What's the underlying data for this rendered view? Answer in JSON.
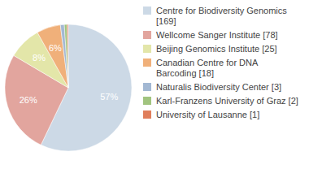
{
  "chart_data": {
    "type": "pie",
    "categories": [
      "Centre for Biodiversity Genomics [169]",
      "Wellcome Sanger Institute [78]",
      "Beijing Genomics Institute [25]",
      "Canadian Centre for DNA Barcoding [18]",
      "Naturalis Biodiversity Center [3]",
      "Karl-Franzens University of Graz [2]",
      "University of Lausanne [1]"
    ],
    "values": [
      57.1,
      26.4,
      8.4,
      6.1,
      1.0,
      0.7,
      0.3
    ],
    "value_labels": [
      "57%",
      "26%",
      "8%",
      "6%",
      null,
      null,
      null
    ],
    "colors": [
      "#ccd9e6",
      "#e2a59e",
      "#e3e6a9",
      "#f0b07a",
      "#a3b8d3",
      "#a1c47f",
      "#e07e5c"
    ],
    "data_labels": true,
    "legend": "upper right"
  }
}
